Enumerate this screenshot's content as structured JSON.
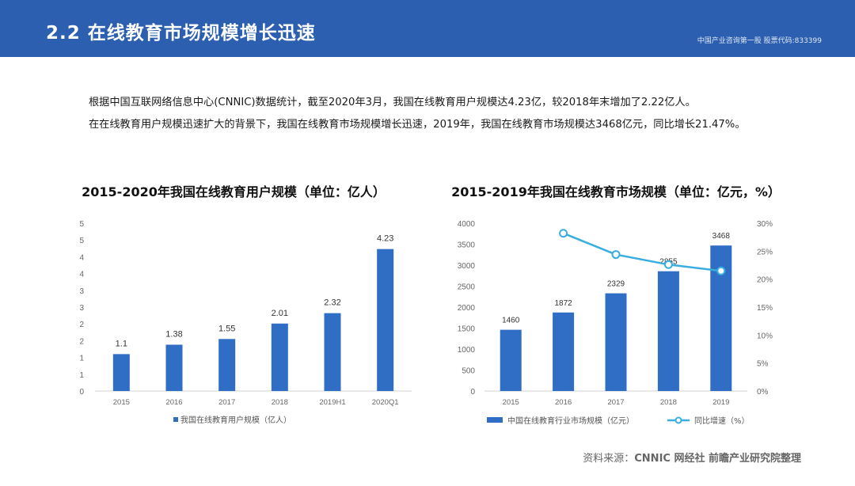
{
  "header": {
    "title": "2.2 在线教育市场规模增长迅速",
    "right_text": "中国产业咨询第一股 股票代码:833399"
  },
  "paragraphs": [
    "根据中国互联网络信息中心(CNNIC)数据统计，截至2020年3月，我国在线教育用户规模达4.23亿，较2018年末增加了2.22亿人。",
    "在在线教育用户规模迅速扩大的背景下，我国在线教育市场规模增长迅速，2019年，我国在线教育市场规模达3468亿元，同比增长21.47%。"
  ],
  "source": {
    "label": "资料来源：",
    "text": "CNNIC 网经社 前瞻产业研究院整理"
  },
  "colors": {
    "header_bg": "#2c5faf",
    "bar": "#2f6ec4",
    "line": "#3aaee0"
  },
  "chart_data": [
    {
      "type": "bar",
      "title": "2015-2020年我国在线教育用户规模（单位：亿人）",
      "categories": [
        "2015",
        "2016",
        "2017",
        "2018",
        "2019H1",
        "2020Q1"
      ],
      "series": [
        {
          "name": "我国在线教育用户规模（亿人）",
          "values": [
            1.1,
            1.38,
            1.55,
            2.01,
            2.32,
            4.23
          ]
        }
      ],
      "data_labels": [
        "1.1",
        "1.38",
        "1.55",
        "2.01",
        "2.32",
        "4.23"
      ],
      "y_tick_labels": [
        "0",
        "1",
        "1",
        "2",
        "2",
        "3",
        "3",
        "4",
        "4",
        "5",
        "5"
      ],
      "ylim": [
        0,
        5
      ],
      "grid": false,
      "legend": "bottom"
    },
    {
      "type": "bar",
      "title": "2015-2019年我国在线教育市场规模（单位：亿元，%）",
      "categories": [
        "2015",
        "2016",
        "2017",
        "2018",
        "2019"
      ],
      "series": [
        {
          "name": "中国在线教育行业市场规模（亿元）",
          "type": "bar",
          "axis": "left",
          "values": [
            1460,
            1872,
            2329,
            2855,
            3468
          ]
        },
        {
          "name": "同比增速（%）",
          "type": "line",
          "axis": "right",
          "values": [
            null,
            28.2,
            24.4,
            22.6,
            21.47
          ]
        }
      ],
      "data_labels": [
        "1460",
        "1872",
        "2329",
        "2855",
        "3468"
      ],
      "y_left_ticks": [
        "0",
        "500",
        "1000",
        "1500",
        "2000",
        "2500",
        "3000",
        "3500",
        "4000"
      ],
      "y_right_ticks": [
        "0%",
        "5%",
        "10%",
        "15%",
        "20%",
        "25%",
        "30%"
      ],
      "ylim_left": [
        0,
        4000
      ],
      "ylim_right": [
        0,
        30
      ],
      "grid": false,
      "legend": "bottom"
    }
  ]
}
